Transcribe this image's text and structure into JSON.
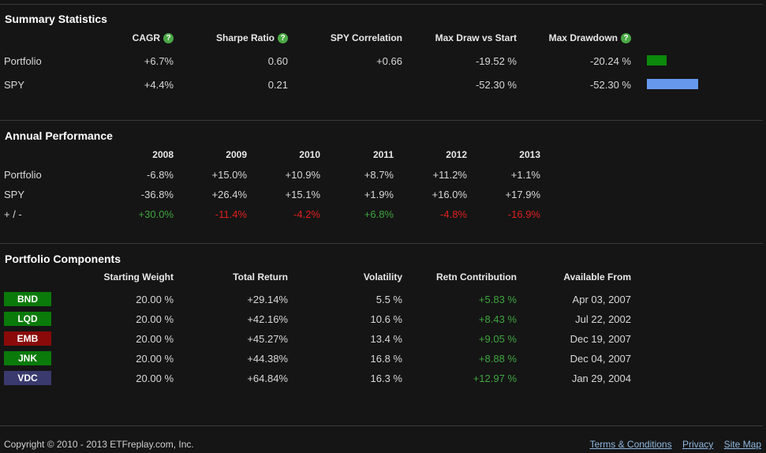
{
  "summary": {
    "title": "Summary Statistics",
    "headers": [
      "CAGR",
      "Sharpe Ratio",
      "SPY Correlation",
      "Max Draw vs Start",
      "Max Drawdown"
    ],
    "help_glyph": "?",
    "rows": [
      {
        "label": "Portfolio",
        "cagr": "+6.7%",
        "sharpe": "0.60",
        "corr": "+0.66",
        "max_draw_start": "-19.52 %",
        "max_drawdown": "-20.24 %",
        "bar_color": "#0b8a0b",
        "bar_value": 20.24
      },
      {
        "label": "SPY",
        "cagr": "+4.4%",
        "sharpe": "0.21",
        "corr": "",
        "max_draw_start": "-52.30 %",
        "max_drawdown": "-52.30 %",
        "bar_color": "#6699ee",
        "bar_value": 52.3
      }
    ]
  },
  "annual": {
    "title": "Annual Performance",
    "years": [
      "2008",
      "2009",
      "2010",
      "2011",
      "2012",
      "2013"
    ],
    "rows": [
      {
        "label": "Portfolio",
        "values": [
          "-6.8%",
          "+15.0%",
          "+10.9%",
          "+8.7%",
          "+11.2%",
          "+1.1%"
        ]
      },
      {
        "label": "SPY",
        "values": [
          "-36.8%",
          "+26.4%",
          "+15.1%",
          "+1.9%",
          "+16.0%",
          "+17.9%"
        ]
      },
      {
        "label": "+ / -",
        "values": [
          "+30.0%",
          "-11.4%",
          "-4.2%",
          "+6.8%",
          "-4.8%",
          "-16.9%"
        ]
      }
    ]
  },
  "components": {
    "title": "Portfolio Components",
    "headers": [
      "Starting Weight",
      "Total Return",
      "Volatility",
      "Retn Contribution",
      "Available From"
    ],
    "rows": [
      {
        "ticker": "BND",
        "color": "#0a7a0a",
        "weight": "20.00 %",
        "total_return": "+29.14%",
        "volatility": "5.5 %",
        "contribution": "+5.83 %",
        "available": "Apr 03, 2007"
      },
      {
        "ticker": "LQD",
        "color": "#0a7a0a",
        "weight": "20.00 %",
        "total_return": "+42.16%",
        "volatility": "10.6 %",
        "contribution": "+8.43 %",
        "available": "Jul 22, 2002"
      },
      {
        "ticker": "EMB",
        "color": "#8a0a0a",
        "weight": "20.00 %",
        "total_return": "+45.27%",
        "volatility": "13.4 %",
        "contribution": "+9.05 %",
        "available": "Dec 19, 2007"
      },
      {
        "ticker": "JNK",
        "color": "#0a7a0a",
        "weight": "20.00 %",
        "total_return": "+44.38%",
        "volatility": "16.8 %",
        "contribution": "+8.88 %",
        "available": "Dec 04, 2007"
      },
      {
        "ticker": "VDC",
        "color": "#3a3a6e",
        "weight": "20.00 %",
        "total_return": "+64.84%",
        "volatility": "16.3 %",
        "contribution": "+12.97 %",
        "available": "Jan 29, 2004"
      }
    ]
  },
  "footer": {
    "copyright": "Copyright © 2010 - 2013 ETFreplay.com, Inc.",
    "links": [
      "Terms & Conditions",
      "Privacy",
      "Site Map"
    ]
  }
}
